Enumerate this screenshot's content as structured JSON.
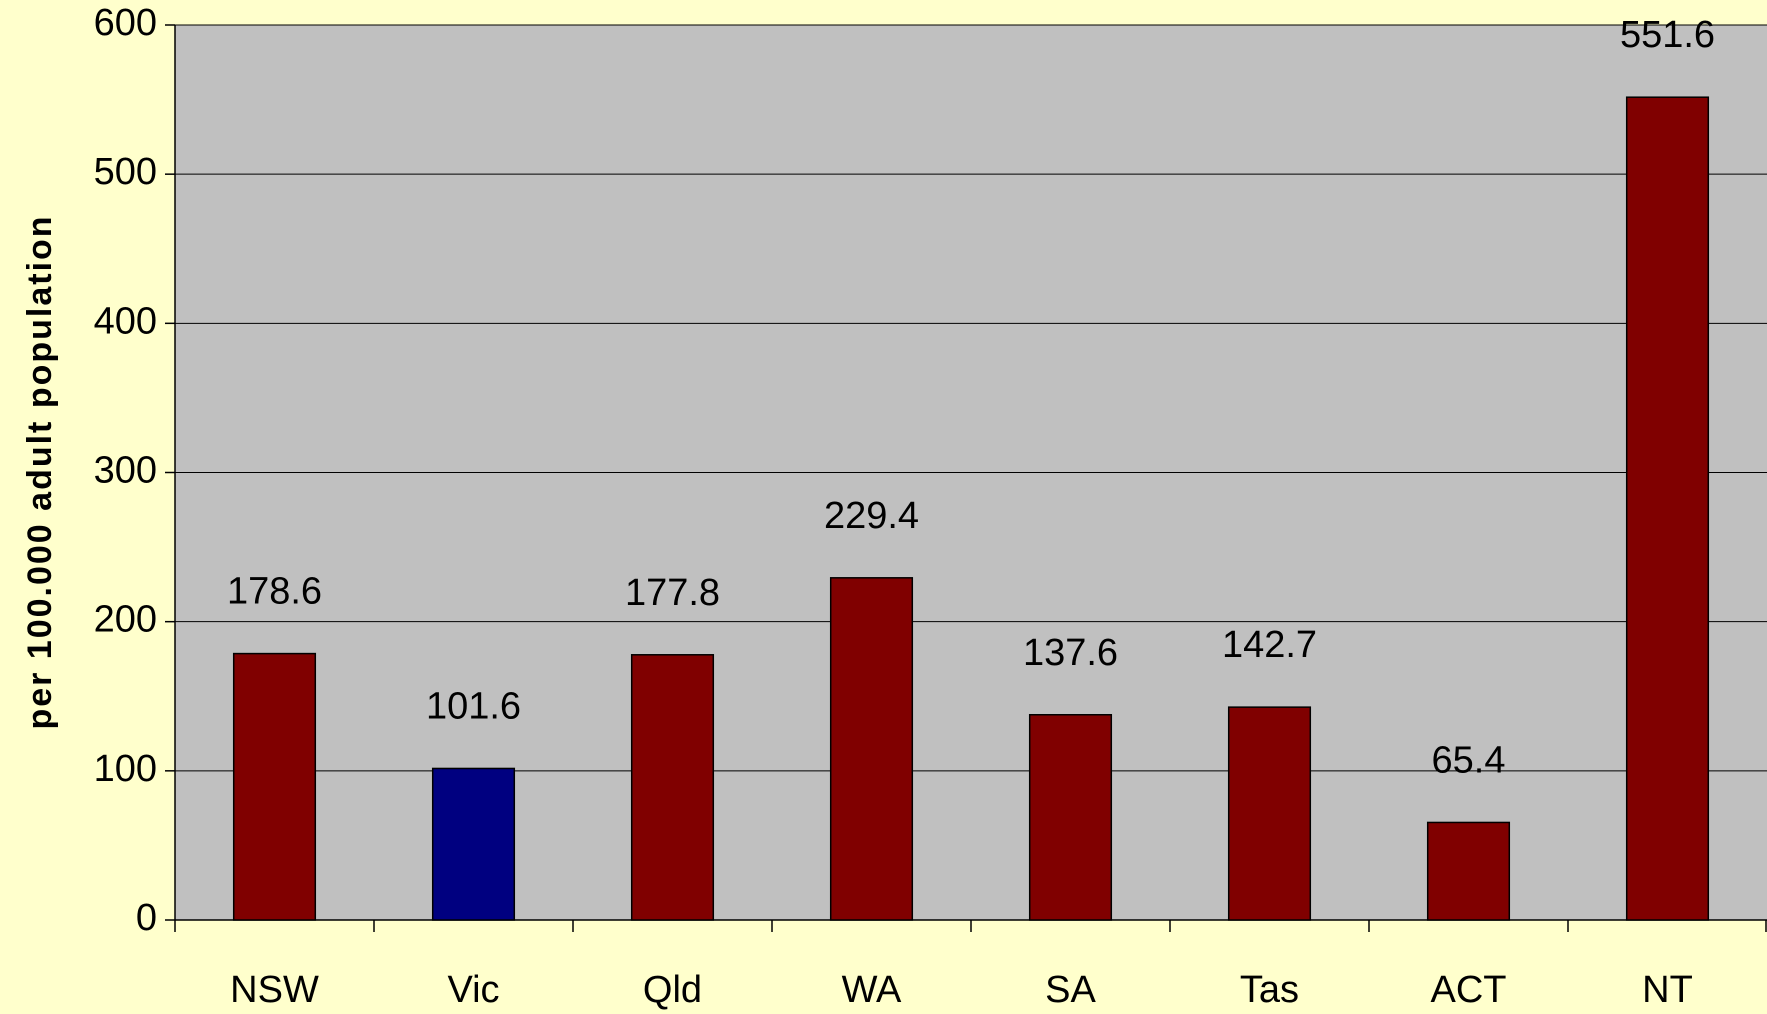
{
  "chart_data": {
    "type": "bar",
    "y_label": "per 100.000 adult population",
    "categories": [
      "NSW",
      "Vic",
      "Qld",
      "WA",
      "SA",
      "Tas",
      "ACT",
      "NT"
    ],
    "values": [
      178.6,
      101.6,
      177.8,
      229.4,
      137.6,
      142.7,
      65.4,
      551.6
    ],
    "colors": [
      "#800000",
      "#000080",
      "#800000",
      "#800000",
      "#800000",
      "#800000",
      "#800000",
      "#800000"
    ],
    "ylim": [
      0,
      600
    ],
    "yticks": [
      0,
      100,
      200,
      300,
      400,
      500,
      600
    ],
    "grid": true
  }
}
